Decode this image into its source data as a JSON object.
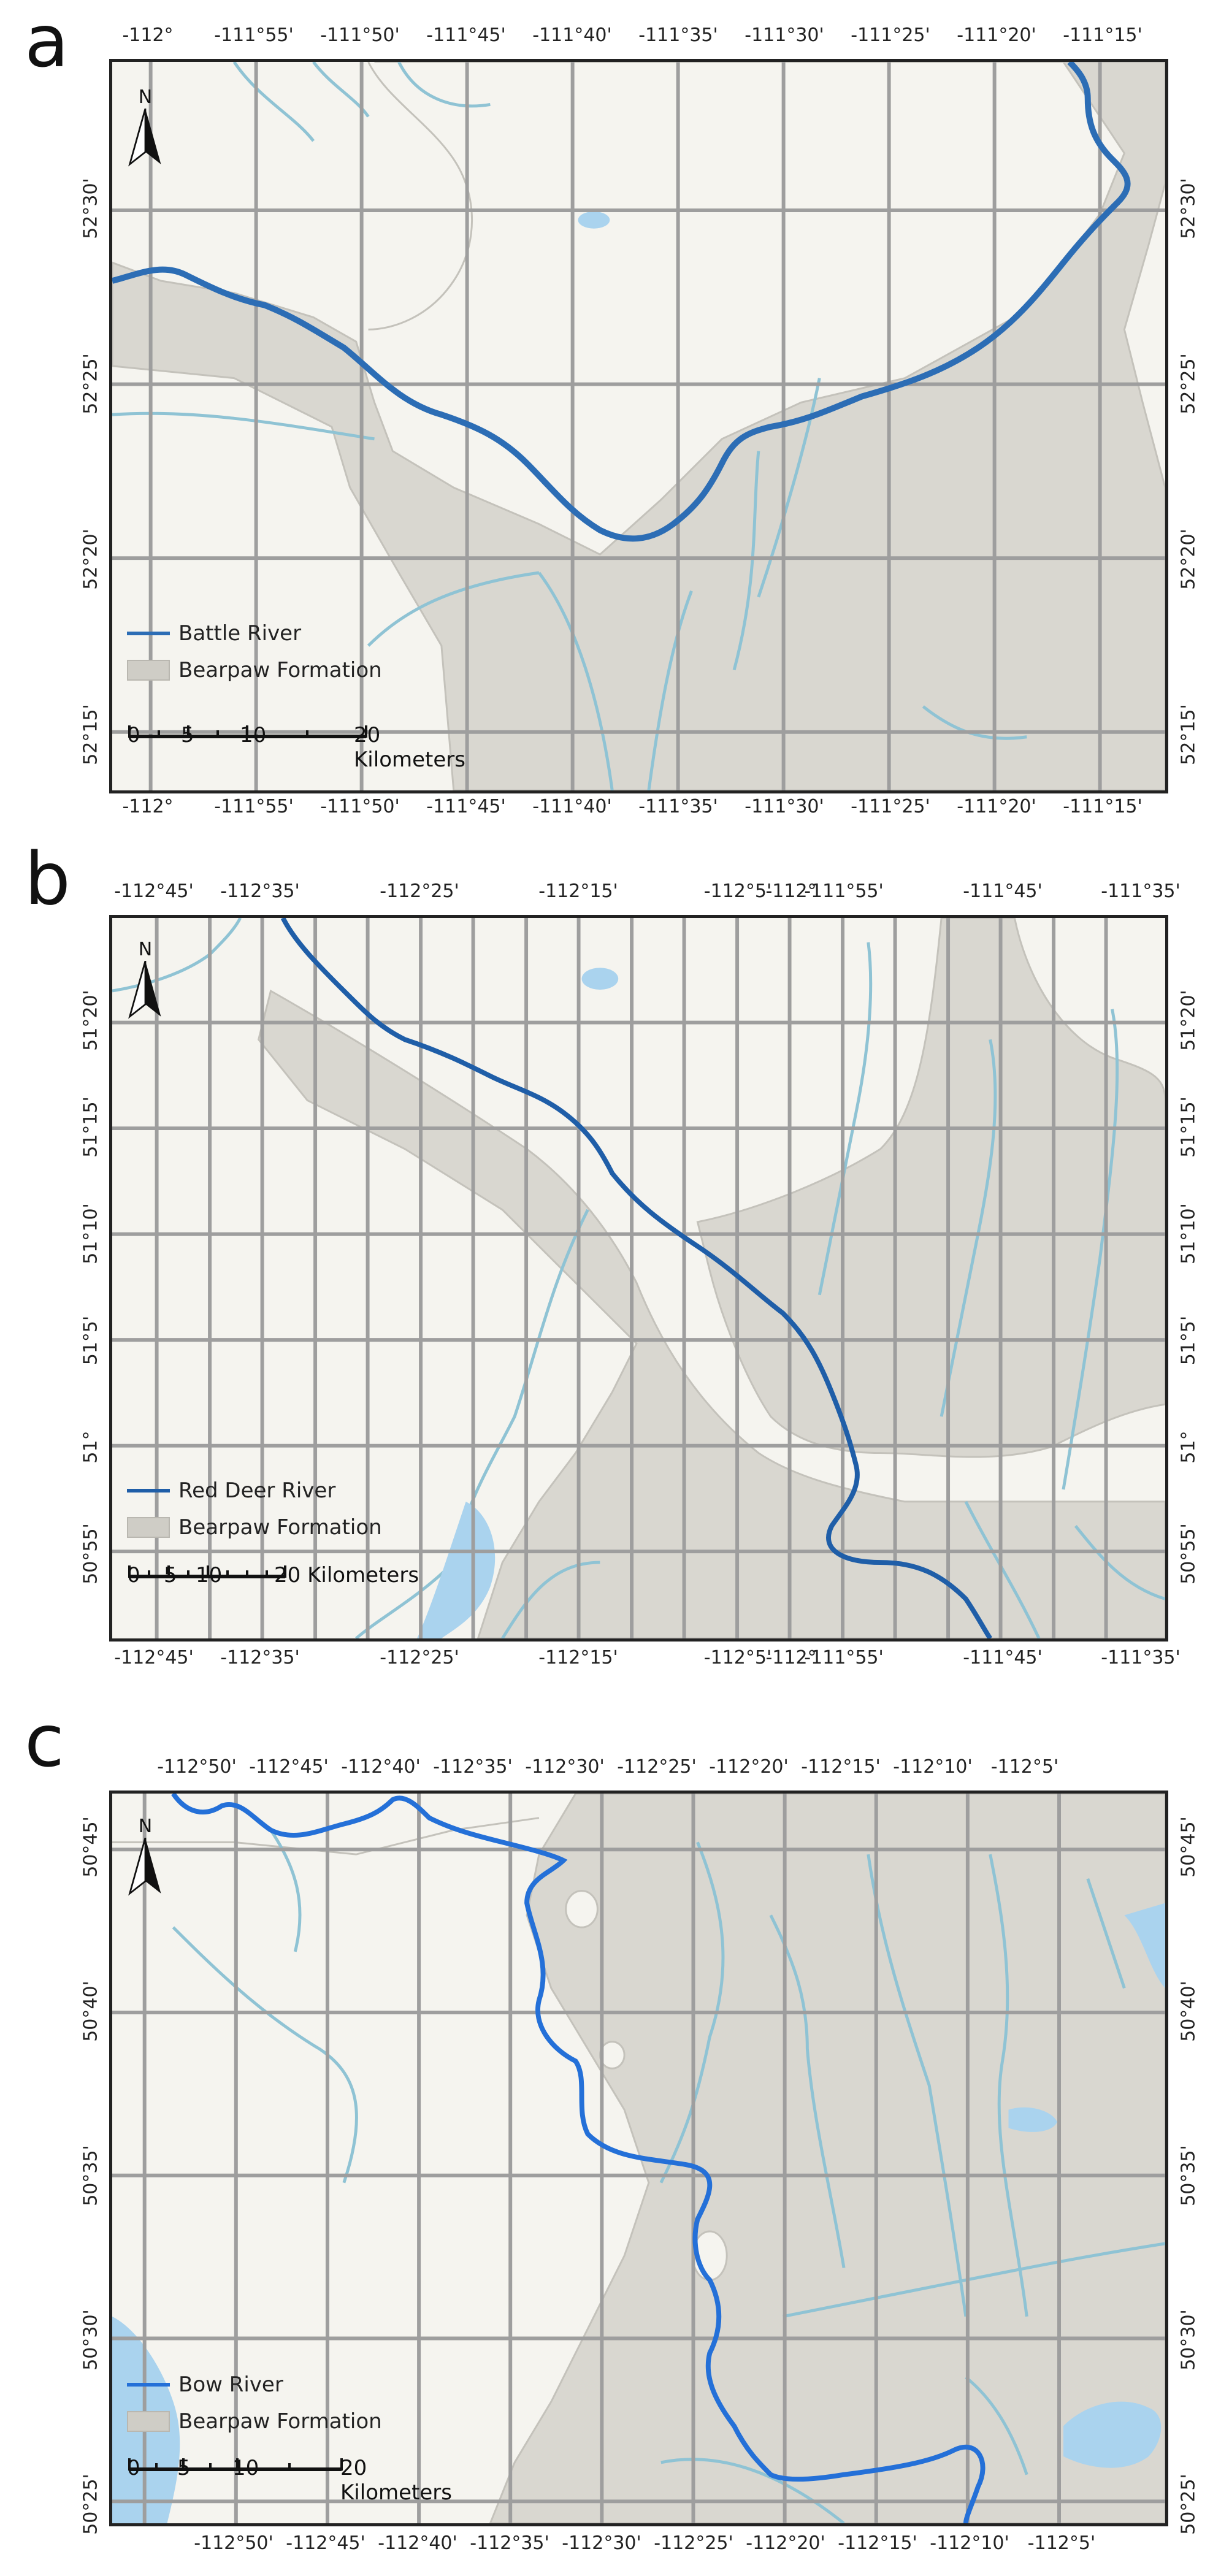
{
  "panels": [
    {
      "id": "a",
      "letter": "a",
      "legend": {
        "river": "Battle River",
        "formation": "Bearpaw Formation"
      },
      "scale": {
        "labels": [
          "0",
          "5",
          "10",
          "20 Kilometers"
        ]
      },
      "north_label": "N",
      "top_labels": [
        "-112°",
        "-111°55'",
        "-111°50'",
        "-111°45'",
        "-111°40'",
        "-111°35'",
        "-111°30'",
        "-111°25'",
        "-111°20'",
        "-111°15'"
      ],
      "bottom_labels": [
        "-112°",
        "-111°55'",
        "-111°50'",
        "-111°45'",
        "-111°40'",
        "-111°35'",
        "-111°30'",
        "-111°25'",
        "-111°20'",
        "-111°15'"
      ],
      "left_labels": [
        "52°30'",
        "52°25'",
        "52°20'",
        "52°15'"
      ],
      "right_labels": [
        "52°30'",
        "52°25'",
        "52°20'",
        "52°15'"
      ],
      "river_color": "#2c6db5"
    },
    {
      "id": "b",
      "letter": "b",
      "legend": {
        "river": "Red Deer River",
        "formation": "Bearpaw Formation"
      },
      "scale": {
        "labels": [
          "0",
          "5",
          "10",
          "20 Kilometers"
        ]
      },
      "north_label": "N",
      "top_labels": [
        "-112°45'",
        "-112°35'",
        "-112°25'",
        "-112°15'",
        "-112°5'",
        "-112°",
        "-111°55'",
        "-111°45'",
        "-111°35'"
      ],
      "bottom_labels": [
        "-112°45'",
        "-112°35'",
        "-112°25'",
        "-112°15'",
        "-112°5'",
        "-112°",
        "-111°55'",
        "-111°45'",
        "-111°35'"
      ],
      "left_labels": [
        "51°20'",
        "51°15'",
        "51°10'",
        "51°5'",
        "51°",
        "50°55'"
      ],
      "right_labels": [
        "51°20'",
        "51°15'",
        "51°10'",
        "51°5'",
        "51°",
        "50°55'"
      ],
      "river_color": "#1f5ea8"
    },
    {
      "id": "c",
      "letter": "c",
      "legend": {
        "river": "Bow River",
        "formation": "Bearpaw Formation"
      },
      "scale": {
        "labels": [
          "0",
          "5",
          "10",
          "20 Kilometers"
        ]
      },
      "north_label": "N",
      "top_labels": [
        "-112°50'",
        "-112°45'",
        "-112°40'",
        "-112°35'",
        "-112°30'",
        "-112°25'",
        "-112°20'",
        "-112°15'",
        "-112°10'",
        "-112°5'"
      ],
      "bottom_labels": [
        "-112°50'",
        "-112°45'",
        "-112°40'",
        "-112°35'",
        "-112°30'",
        "-112°25'",
        "-112°20'",
        "-112°15'",
        "-112°10'",
        "-112°5'"
      ],
      "left_labels": [
        "50°45'",
        "50°40'",
        "50°35'",
        "50°30'",
        "50°25'"
      ],
      "right_labels": [
        "50°45'",
        "50°40'",
        "50°35'",
        "50°30'",
        "50°25'"
      ],
      "river_color": "#2470d8"
    }
  ],
  "colors": {
    "background": "#f5f4ef",
    "formation": "#d9d7d0",
    "formation_edge": "#c4c2bb",
    "grid": "#9e9e9e",
    "streams": "#8fc3d4",
    "water": "#aad3ee"
  }
}
